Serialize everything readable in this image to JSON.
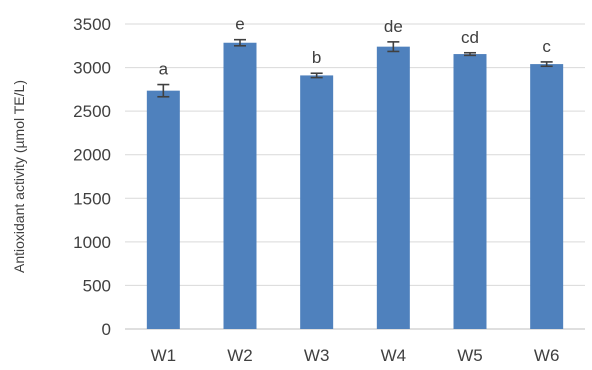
{
  "chart_data": {
    "type": "bar",
    "title": "",
    "xlabel": "",
    "ylabel": "Antioxidant activity (µmol TE/L)",
    "ylim": [
      0,
      3500
    ],
    "yticks": [
      0,
      500,
      1000,
      1500,
      2000,
      2500,
      3000,
      3500
    ],
    "grid": true,
    "legend": "none",
    "bar_color": "#4f81bd",
    "categories": [
      "W1",
      "W2",
      "W3",
      "W4",
      "W5",
      "W6"
    ],
    "values": [
      2735,
      3285,
      2910,
      3240,
      3155,
      3040
    ],
    "errors": [
      70,
      35,
      25,
      55,
      15,
      25
    ],
    "significance_labels": [
      "a",
      "e",
      "b",
      "de",
      "cd",
      "c"
    ]
  }
}
